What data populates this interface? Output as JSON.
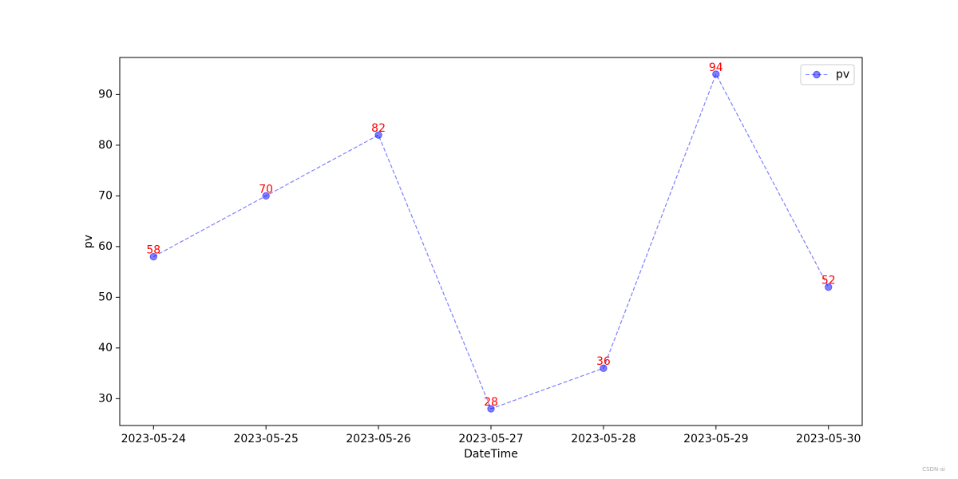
{
  "chart_data": {
    "type": "line",
    "x_label": "DateTime",
    "y_label": "pv",
    "categories": [
      "2023-05-24",
      "2023-05-25",
      "2023-05-26",
      "2023-05-27",
      "2023-05-28",
      "2023-05-29",
      "2023-05-30"
    ],
    "series": [
      {
        "name": "pv",
        "color": "#0000ff",
        "values": [
          58,
          70,
          82,
          28,
          36,
          94,
          52
        ]
      }
    ],
    "label_color": "#ff0000",
    "ylim": [
      24.7,
      97.3
    ],
    "yticks": [
      30,
      40,
      50,
      60,
      70,
      80,
      90
    ],
    "legend": "upper right",
    "grid": false,
    "watermark": "CSDN-ai"
  }
}
